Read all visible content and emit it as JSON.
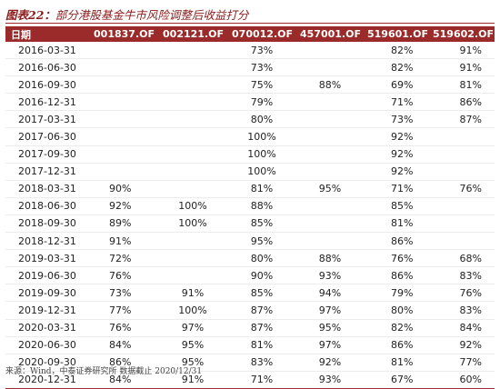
{
  "title": {
    "prefix": "图表22：",
    "text": "部分港股基金牛市风险调整后收益打分"
  },
  "table": {
    "headers": [
      "日期",
      "001837.OF",
      "002121.OF",
      "070012.OF",
      "457001.OF",
      "519601.OF",
      "519602.OF"
    ],
    "rows": [
      [
        "2016-03-31",
        "",
        "",
        "73%",
        "",
        "82%",
        "91%"
      ],
      [
        "2016-06-30",
        "",
        "",
        "73%",
        "",
        "82%",
        "91%"
      ],
      [
        "2016-09-30",
        "",
        "",
        "75%",
        "88%",
        "69%",
        "81%"
      ],
      [
        "2016-12-31",
        "",
        "",
        "79%",
        "",
        "71%",
        "86%"
      ],
      [
        "2017-03-31",
        "",
        "",
        "80%",
        "",
        "73%",
        "87%"
      ],
      [
        "2017-06-30",
        "",
        "",
        "100%",
        "",
        "92%",
        ""
      ],
      [
        "2017-09-30",
        "",
        "",
        "100%",
        "",
        "92%",
        ""
      ],
      [
        "2017-12-31",
        "",
        "",
        "100%",
        "",
        "92%",
        ""
      ],
      [
        "2018-03-31",
        "90%",
        "",
        "81%",
        "95%",
        "71%",
        "76%"
      ],
      [
        "2018-06-30",
        "92%",
        "100%",
        "88%",
        "",
        "85%",
        ""
      ],
      [
        "2018-09-30",
        "89%",
        "100%",
        "85%",
        "",
        "81%",
        ""
      ],
      [
        "2018-12-31",
        "91%",
        "",
        "95%",
        "",
        "86%",
        ""
      ],
      [
        "2019-03-31",
        "72%",
        "",
        "80%",
        "88%",
        "76%",
        "68%"
      ],
      [
        "2019-06-30",
        "76%",
        "",
        "90%",
        "93%",
        "86%",
        "83%"
      ],
      [
        "2019-09-30",
        "73%",
        "91%",
        "85%",
        "94%",
        "79%",
        "76%"
      ],
      [
        "2019-12-31",
        "77%",
        "100%",
        "87%",
        "97%",
        "80%",
        "83%"
      ],
      [
        "2020-03-31",
        "76%",
        "97%",
        "87%",
        "95%",
        "82%",
        "84%"
      ],
      [
        "2020-06-30",
        "84%",
        "95%",
        "81%",
        "97%",
        "86%",
        "92%"
      ],
      [
        "2020-09-30",
        "86%",
        "95%",
        "83%",
        "92%",
        "81%",
        "77%"
      ],
      [
        "2020-12-31",
        "84%",
        "91%",
        "71%",
        "93%",
        "67%",
        "60%"
      ]
    ]
  },
  "source": "来源：Wind，中泰证券研究所 数据截止 2020/12/31",
  "colors": {
    "accent": "#9b2a2a",
    "title_text": "#8b1a1a"
  }
}
